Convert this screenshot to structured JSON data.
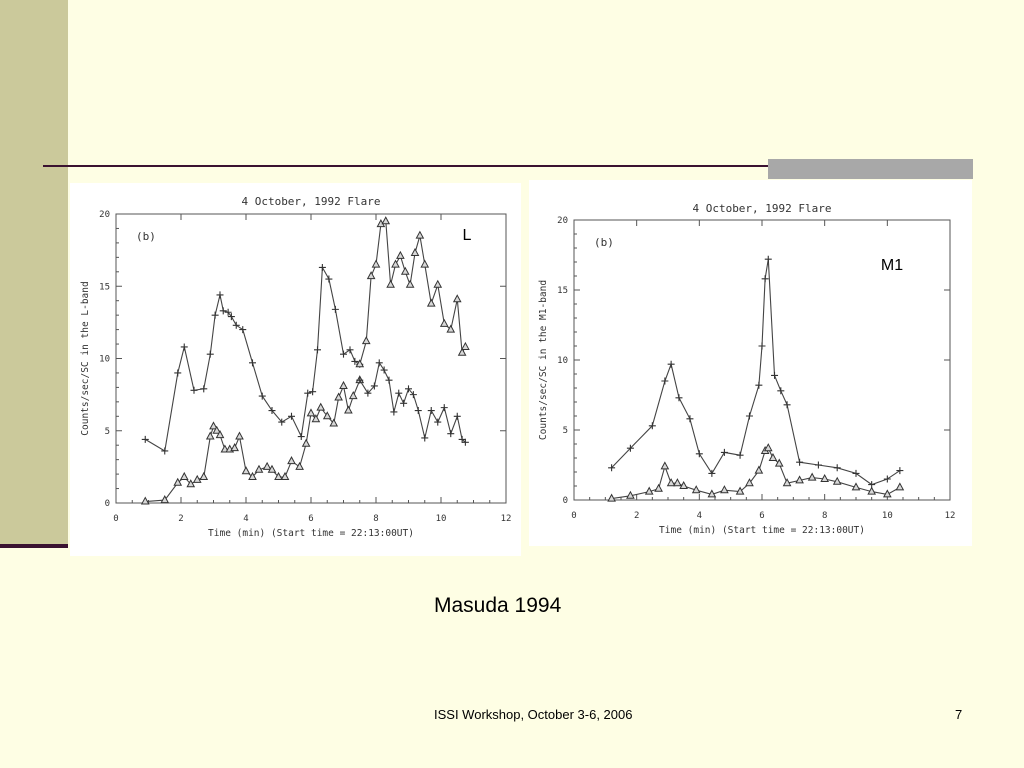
{
  "slide": {
    "caption": "Masuda 1994",
    "footer": "ISSI Workshop, October 3-6, 2006",
    "page_number": "7",
    "colors": {
      "background": "#fefee4",
      "accent_band": "#cbc99b",
      "rule": "#3a1230",
      "rule_block": "#a8a8a8"
    }
  },
  "chart_data": [
    {
      "type": "line",
      "title": "4 October, 1992 Flare",
      "panel_tag": "(b)",
      "band_label": "L",
      "xlabel": "Time (min)   (Start time = 22:13:00UT)",
      "ylabel": "Counts/sec/SC in the L-band",
      "xlim": [
        0,
        12
      ],
      "ylim": [
        0,
        20
      ],
      "xticks": [
        0,
        2,
        4,
        6,
        8,
        10,
        12
      ],
      "yticks": [
        0,
        5,
        10,
        15,
        20
      ],
      "grid": false,
      "series": [
        {
          "marker": "plus",
          "x": [
            0.9,
            1.5,
            1.9,
            2.1,
            2.4,
            2.7,
            2.9,
            3.05,
            3.2,
            3.3,
            3.45,
            3.55,
            3.7,
            3.9,
            4.2,
            4.5,
            4.8,
            5.1,
            5.4,
            5.7,
            5.9,
            6.05,
            6.2,
            6.35,
            6.55,
            6.75,
            7.0,
            7.2,
            7.35,
            7.5
          ],
          "y": [
            4.4,
            3.6,
            9.0,
            10.8,
            7.8,
            7.9,
            10.3,
            13.0,
            14.4,
            13.3,
            13.2,
            12.9,
            12.3,
            12.0,
            9.7,
            7.4,
            6.4,
            5.6,
            6.0,
            4.6,
            7.6,
            7.7,
            10.6,
            16.3,
            15.5,
            13.4,
            10.3,
            10.6,
            9.8,
            9.6
          ]
        },
        {
          "marker": "triangle",
          "x": [
            0.9,
            1.5,
            1.9,
            2.1,
            2.3,
            2.5,
            2.7,
            2.9,
            3.0,
            3.1,
            3.2,
            3.35,
            3.5,
            3.65,
            3.8,
            4.0,
            4.2,
            4.4,
            4.65,
            4.8,
            5.0,
            5.2,
            5.4,
            5.65,
            5.85,
            6.0,
            6.15,
            6.3,
            6.5,
            6.7,
            6.85,
            7.0,
            7.15,
            7.3,
            7.5
          ],
          "y": [
            0.1,
            0.2,
            1.4,
            1.8,
            1.3,
            1.6,
            1.8,
            4.6,
            5.3,
            5.0,
            4.7,
            3.7,
            3.7,
            3.8,
            4.6,
            2.2,
            1.8,
            2.3,
            2.5,
            2.3,
            1.8,
            1.8,
            2.9,
            2.5,
            4.1,
            6.2,
            5.8,
            6.6,
            6.0,
            5.5,
            7.3,
            8.1,
            6.4,
            7.4,
            8.5
          ]
        },
        {
          "marker": "triangle",
          "x": [
            7.5,
            7.7,
            7.85,
            8.0,
            8.15,
            8.3,
            8.45,
            8.6,
            8.75,
            8.9,
            9.05,
            9.2,
            9.35,
            9.5,
            9.7,
            9.9,
            10.1,
            10.3,
            10.5,
            10.65,
            10.75
          ],
          "y": [
            9.6,
            11.2,
            15.7,
            16.5,
            19.3,
            19.5,
            15.1,
            16.5,
            17.1,
            16.0,
            15.1,
            17.3,
            18.5,
            16.5,
            13.8,
            15.1,
            12.4,
            12.0,
            14.1,
            10.4,
            10.8
          ]
        },
        {
          "marker": "plus",
          "x": [
            7.5,
            7.75,
            7.95,
            8.1,
            8.25,
            8.4,
            8.55,
            8.7,
            8.85,
            9.0,
            9.15,
            9.3,
            9.5,
            9.7,
            9.9,
            10.1,
            10.3,
            10.5,
            10.65,
            10.75
          ],
          "y": [
            8.5,
            7.6,
            8.1,
            9.7,
            9.2,
            8.5,
            6.3,
            7.6,
            6.9,
            7.9,
            7.5,
            6.4,
            4.5,
            6.4,
            5.6,
            6.6,
            4.8,
            6.0,
            4.4,
            4.2
          ]
        }
      ]
    },
    {
      "type": "line",
      "title": "4 October, 1992 Flare",
      "panel_tag": "(b)",
      "band_label": "M1",
      "xlabel": "Time (min)   (Start time = 22:13:00UT)",
      "ylabel": "Counts/sec/SC in the M1-band",
      "xlim": [
        0,
        12
      ],
      "ylim": [
        0,
        20
      ],
      "xticks": [
        0,
        2,
        4,
        6,
        8,
        10,
        12
      ],
      "yticks": [
        0,
        5,
        10,
        15,
        20
      ],
      "grid": false,
      "series": [
        {
          "marker": "plus",
          "x": [
            1.2,
            1.8,
            2.5,
            2.9,
            3.1,
            3.35,
            3.7,
            4.0,
            4.4,
            4.8,
            5.3,
            5.6,
            5.9,
            6.0,
            6.1,
            6.2,
            6.4,
            6.6,
            6.8,
            7.2,
            7.8,
            8.4,
            9.0,
            9.5,
            10.0,
            10.4
          ],
          "y": [
            2.3,
            3.7,
            5.3,
            8.5,
            9.7,
            7.3,
            5.8,
            3.3,
            1.9,
            3.4,
            3.2,
            6.0,
            8.2,
            11.0,
            15.8,
            17.2,
            8.9,
            7.8,
            6.8,
            2.7,
            2.5,
            2.3,
            1.9,
            1.1,
            1.5,
            2.1
          ]
        },
        {
          "marker": "triangle",
          "x": [
            1.2,
            1.8,
            2.4,
            2.7,
            2.9,
            3.1,
            3.3,
            3.5,
            3.9,
            4.4,
            4.8,
            5.3,
            5.6,
            5.9,
            6.1,
            6.2,
            6.35,
            6.55,
            6.8,
            7.2,
            7.6,
            8.0,
            8.4,
            9.0,
            9.5,
            10.0,
            10.4
          ],
          "y": [
            0.1,
            0.3,
            0.6,
            0.8,
            2.4,
            1.2,
            1.2,
            1.0,
            0.7,
            0.4,
            0.7,
            0.6,
            1.2,
            2.1,
            3.5,
            3.7,
            3.0,
            2.6,
            1.2,
            1.4,
            1.6,
            1.5,
            1.3,
            0.9,
            0.6,
            0.4,
            0.9
          ]
        }
      ]
    }
  ]
}
